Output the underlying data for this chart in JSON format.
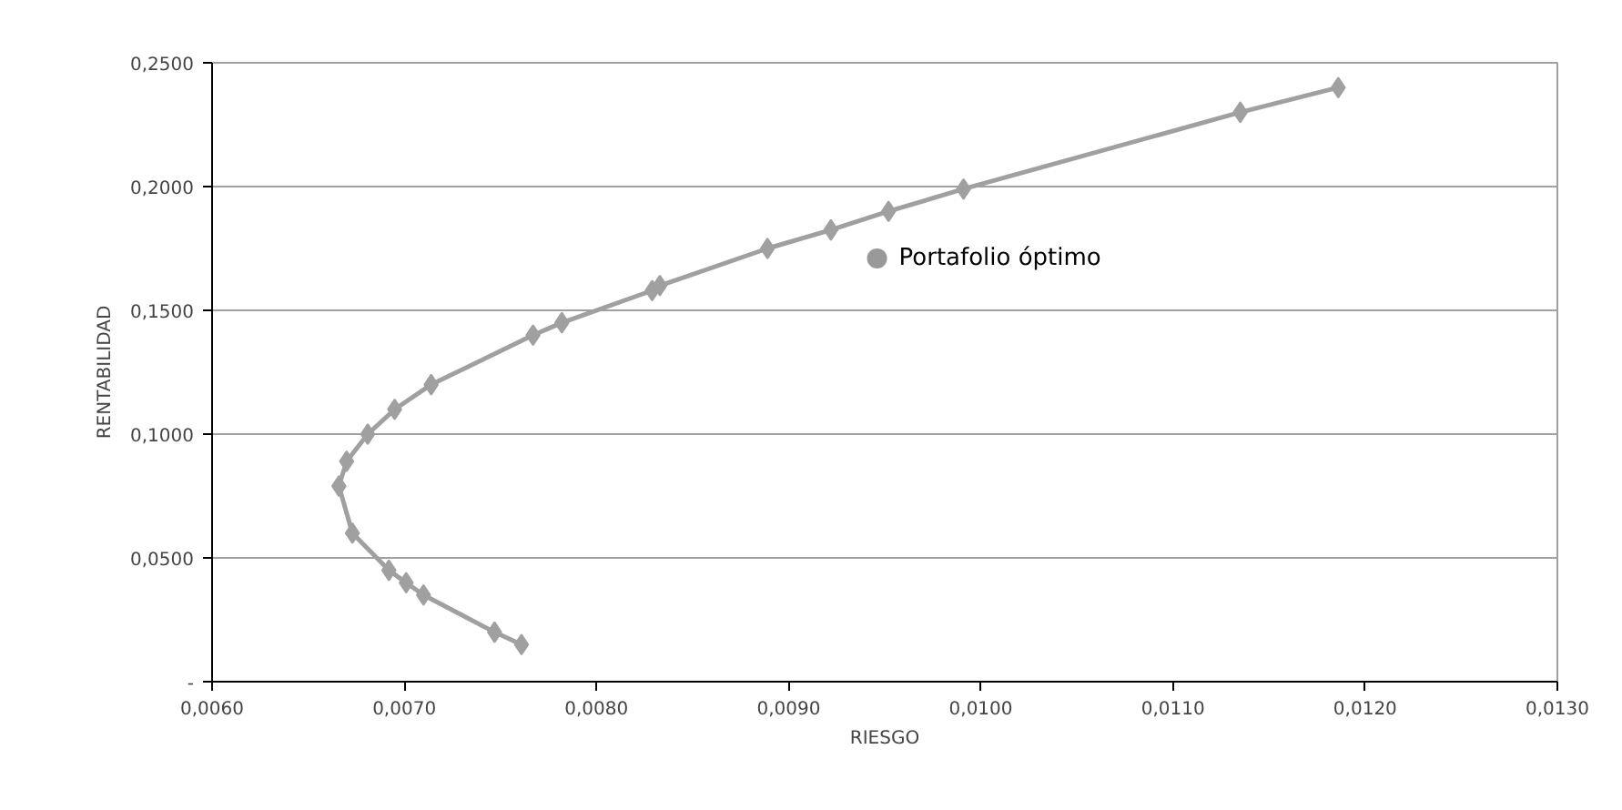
{
  "chart_data": {
    "type": "line",
    "xlabel": "RIESGO",
    "ylabel": "RENTABILIDAD",
    "xlim": [
      0.006,
      0.013
    ],
    "ylim": [
      0,
      0.25
    ],
    "xticks": [
      {
        "value": 0.006,
        "label": "0,0060"
      },
      {
        "value": 0.007,
        "label": "0,0070"
      },
      {
        "value": 0.008,
        "label": "0,0080"
      },
      {
        "value": 0.009,
        "label": "0,0090"
      },
      {
        "value": 0.01,
        "label": "0,0100"
      },
      {
        "value": 0.011,
        "label": "0,0110"
      },
      {
        "value": 0.012,
        "label": "0,0120"
      },
      {
        "value": 0.013,
        "label": "0,0130"
      }
    ],
    "yticks": [
      {
        "value": 0,
        "label": "-"
      },
      {
        "value": 0.05,
        "label": "0,0500"
      },
      {
        "value": 0.1,
        "label": "0,1000"
      },
      {
        "value": 0.15,
        "label": "0,1500"
      },
      {
        "value": 0.2,
        "label": "0,2000"
      },
      {
        "value": 0.25,
        "label": "0,2500"
      }
    ],
    "grid": "y",
    "marker": "diamond",
    "line_style": "solid",
    "series": [
      {
        "color": "#a0a0a0",
        "x": [
          0.00761,
          0.00747,
          0.0071,
          0.00701,
          0.00692,
          0.00673,
          0.00666,
          0.0067,
          0.00681,
          0.00695,
          0.00714,
          0.00767,
          0.00782,
          0.00829,
          0.00833,
          0.00889,
          0.00922,
          0.00952,
          0.00991,
          0.01135,
          0.01186
        ],
        "values": [
          0.015,
          0.02,
          0.035,
          0.04,
          0.045,
          0.06,
          0.079,
          0.089,
          0.1,
          0.11,
          0.12,
          0.14,
          0.145,
          0.158,
          0.16,
          0.175,
          0.1825,
          0.19,
          0.199,
          0.23,
          0.24
        ]
      },
      {
        "type": "scatter",
        "name": "Portafolio óptimo",
        "color": "#999999",
        "marker": "circle",
        "x": [
          0.00946
        ],
        "values": [
          0.171
        ]
      }
    ]
  }
}
